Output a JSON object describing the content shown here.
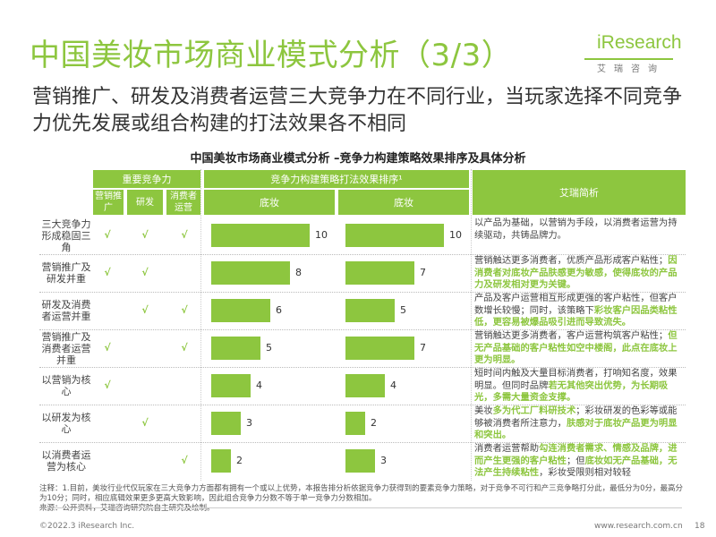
{
  "page": {
    "title": "中国美妆市场商业模式分析（3/3）",
    "subtitle": "营销推广、研发及消费者运营三大竞争力在不同行业，当玩家选择不同竞争力优先发展或组合构建的打法效果各不相同",
    "table_title": "中国美妆市场商业模式分析 –竞争力构建策略效果排序及具体分析"
  },
  "logo": {
    "main": "iResearch",
    "sub": "艾瑞咨询"
  },
  "header": {
    "competencies": "重要竞争力",
    "ranking": "竞争力构建策略打法效果排序¹",
    "analysis": "艾瑞简析",
    "col_marketing": "营销推广",
    "col_rd": "研发",
    "col_consumer": "消费者运营",
    "col_base1": "底妆",
    "col_base2": "底妆"
  },
  "rows": [
    {
      "label": "三大竞争力形成稳固三角",
      "checks": [
        "√",
        "√",
        "√"
      ],
      "v1": "10",
      "v2": "10",
      "analysis": [
        {
          "t": "以产品为基础，以营销为手段，以消费者运营为持续驱动，共铸品牌力。",
          "h": false
        }
      ]
    },
    {
      "label": "营销推广及研发并重",
      "checks": [
        "√",
        "√",
        ""
      ],
      "v1": "8",
      "v2": "7",
      "analysis": [
        {
          "t": "营销触达更多消费者，优质产品形成客户粘性；",
          "h": false
        },
        {
          "t": "因消费者对底妆产品肤感更为敏感，使得底妆的产品力及研发相对更为关键。",
          "h": true
        }
      ]
    },
    {
      "label": "研发及消费者运营并重",
      "checks": [
        "",
        "√",
        "√"
      ],
      "v1": "6",
      "v2": "5",
      "analysis": [
        {
          "t": "产品及客户运营相互形成更强的客户粘性，但客户数增长较慢；同时，该策略下",
          "h": false
        },
        {
          "t": "彩妆客户因品类粘性低，更容易被爆品吸引进而导致流失。",
          "h": true
        }
      ]
    },
    {
      "label": "营销推广及消费者运营并重",
      "checks": [
        "√",
        "",
        "√"
      ],
      "v1": "5",
      "v2": "7",
      "analysis": [
        {
          "t": "营销触达更多消费者，客户运营构筑客户粘性；",
          "h": false
        },
        {
          "t": "但无产品基础的客户粘性如空中楼阁，此点在底妆上更为明显。",
          "h": true
        }
      ]
    },
    {
      "label": "以营销为核心",
      "checks": [
        "√",
        "",
        ""
      ],
      "v1": "4",
      "v2": "4",
      "analysis": [
        {
          "t": "短时间内触及大量目标消费者，打响知名度，效果明显。但同时品牌",
          "h": false
        },
        {
          "t": "若无其他突出优势，为长期吸光，多需大量资金支撑。",
          "h": true
        }
      ]
    },
    {
      "label": "以研发为核心",
      "checks": [
        "",
        "√",
        ""
      ],
      "v1": "3",
      "v2": "2",
      "analysis": [
        {
          "t": "美妆",
          "h": false
        },
        {
          "t": "多为代工厂料研技术",
          "h": true
        },
        {
          "t": "；彩妆研发的色彩等或能够被消费者所注意力，",
          "h": false
        },
        {
          "t": "肤感对于底妆产品更为明显和突出。",
          "h": true
        }
      ]
    },
    {
      "label": "以消费者运营为核心",
      "checks": [
        "",
        "",
        "√"
      ],
      "v1": "2",
      "v2": "3",
      "analysis": [
        {
          "t": "消费者运营帮助",
          "h": false
        },
        {
          "t": "勾连消费者需求、情感及品牌，进而产生更强的客户粘性",
          "h": true
        },
        {
          "t": "；但",
          "h": false
        },
        {
          "t": "底妆如无产品基础，无法产生持续粘性",
          "h": true
        },
        {
          "t": "，彩妆受限则相对较轻",
          "h": false
        }
      ]
    }
  ],
  "notes": [
    "注释：1.目前，美妆行业代仅玩家在三大竞争力方面都有拥有一个或以上优势，本报告排分析依据竞争力获得到的要素竞争力策略，对于竞争不可行和产三竞争略打分此，最低分为0分，最高分为10分；同时，相应底辑效果更多更高大致影响，因此组合竞争力分数不等于单一竞争力分数相加。",
    "来源：公开资料，艾瑞咨询研究院自主研究及绘制。"
  ],
  "footer": {
    "copyright": "©2022.3 iResearch Inc.",
    "site": "www.research.com.cn",
    "page": "18"
  },
  "colors": {
    "accent": "#8dc63f"
  }
}
